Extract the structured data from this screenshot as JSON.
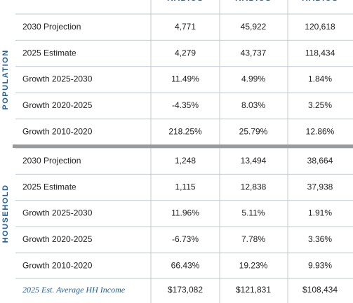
{
  "header": {
    "columns": [
      "RADIUS",
      "RADIUS",
      "RADIUS"
    ]
  },
  "sections": [
    {
      "label": "POPULATION",
      "rows": [
        {
          "label": "2030 Projection",
          "values": [
            "4,771",
            "45,922",
            "120,618"
          ]
        },
        {
          "label": "2025 Estimate",
          "values": [
            "4,279",
            "43,737",
            "118,434"
          ]
        },
        {
          "label": "Growth 2025-2030",
          "values": [
            "11.49%",
            "4.99%",
            "1.84%"
          ]
        },
        {
          "label": "Growth 2020-2025",
          "values": [
            "-4.35%",
            "8.03%",
            "3.25%"
          ]
        },
        {
          "label": "Growth 2010-2020",
          "values": [
            "218.25%",
            "25.79%",
            "12.86%"
          ]
        }
      ]
    },
    {
      "label": "HOUSEHOLD",
      "rows": [
        {
          "label": "2030 Projection",
          "values": [
            "1,248",
            "13,494",
            "38,664"
          ]
        },
        {
          "label": "2025 Estimate",
          "values": [
            "1,115",
            "12,838",
            "37,938"
          ]
        },
        {
          "label": "Growth 2025-2030",
          "values": [
            "11.96%",
            "5.11%",
            "1.91%"
          ]
        },
        {
          "label": "Growth 2020-2025",
          "values": [
            "-6.73%",
            "7.78%",
            "3.36%"
          ]
        },
        {
          "label": "Growth 2010-2020",
          "values": [
            "66.43%",
            "19.23%",
            "9.93%"
          ]
        }
      ]
    }
  ],
  "income": {
    "label": "2025 Est. Average HH Income",
    "values": [
      "$173,082",
      "$121,831",
      "$108,434"
    ]
  }
}
